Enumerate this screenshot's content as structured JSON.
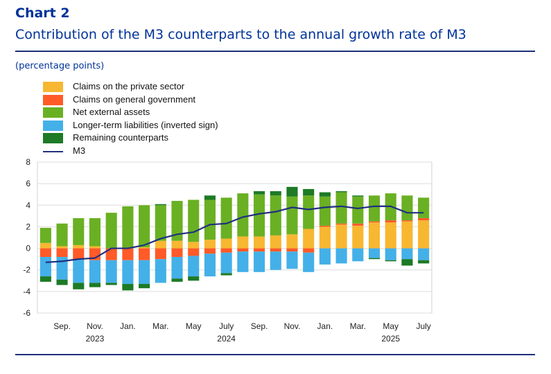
{
  "header": {
    "chart_label": "Chart 2",
    "title": "Contribution of the M3 counterparts to the annual growth rate of M3",
    "unit_note": "(percentage points)"
  },
  "chart_data": {
    "type": "bar",
    "stacked": true,
    "title": "Contribution of the M3 counterparts to the annual growth rate of M3",
    "ylabel": "(percentage points)",
    "ylim": [
      -6,
      8
    ],
    "yticks": [
      8,
      6,
      4,
      2,
      0,
      -2,
      -4,
      -6
    ],
    "grid": true,
    "legend_position": "top-left",
    "categories": [
      "2023-08",
      "2023-09",
      "2023-10",
      "2023-11",
      "2023-12",
      "2024-01",
      "2024-02",
      "2024-03",
      "2024-04",
      "2024-05",
      "2024-06",
      "2024-07",
      "2024-08",
      "2024-09",
      "2024-10",
      "2024-11",
      "2024-12",
      "2025-01",
      "2025-02",
      "2025-03",
      "2025-04",
      "2025-05",
      "2025-06",
      "2025-07"
    ],
    "x_tick_labels": [
      {
        "index": 1,
        "label": "Sep."
      },
      {
        "index": 3,
        "label": "Nov."
      },
      {
        "index": 5,
        "label": "Jan."
      },
      {
        "index": 7,
        "label": "Mar."
      },
      {
        "index": 9,
        "label": "May"
      },
      {
        "index": 11,
        "label": "July"
      },
      {
        "index": 13,
        "label": "Sep."
      },
      {
        "index": 15,
        "label": "Nov."
      },
      {
        "index": 17,
        "label": "Jan."
      },
      {
        "index": 19,
        "label": "Mar."
      },
      {
        "index": 21,
        "label": "May"
      },
      {
        "index": 23,
        "label": "July"
      }
    ],
    "year_labels": [
      {
        "index": 3,
        "label": "2023"
      },
      {
        "index": 11,
        "label": "2024"
      },
      {
        "index": 21,
        "label": "2025"
      }
    ],
    "series": [
      {
        "name": "Claims on the private sector",
        "color": "#f7b731",
        "values": [
          0.5,
          0.2,
          0.3,
          0.2,
          0.0,
          0.0,
          0.1,
          0.7,
          0.7,
          0.6,
          0.8,
          0.9,
          1.1,
          1.1,
          1.2,
          1.3,
          1.8,
          2.0,
          2.2,
          2.1,
          2.4,
          2.4,
          2.5,
          2.6
        ]
      },
      {
        "name": "Claims on general government",
        "color": "#ff5a28",
        "values": [
          -0.8,
          -0.8,
          -1.0,
          -1.1,
          -1.1,
          -1.1,
          -1.1,
          -1.0,
          -0.8,
          -0.7,
          -0.5,
          -0.4,
          -0.3,
          -0.3,
          -0.3,
          -0.3,
          -0.4,
          0.1,
          0.1,
          0.2,
          0.1,
          0.2,
          0.1,
          0.2
        ]
      },
      {
        "name": "Net external assets",
        "color": "#6ab023",
        "values": [
          1.4,
          2.1,
          2.5,
          2.6,
          3.3,
          3.9,
          3.9,
          3.3,
          3.7,
          3.9,
          3.7,
          3.8,
          4.0,
          3.9,
          3.7,
          3.5,
          3.1,
          2.7,
          2.9,
          2.5,
          2.4,
          2.5,
          2.3,
          1.9
        ]
      },
      {
        "name": "Longer-term liabilities (inverted sign)",
        "color": "#44b0e8",
        "values": [
          -1.8,
          -2.1,
          -2.2,
          -2.1,
          -2.1,
          -2.2,
          -2.2,
          -2.2,
          -2.0,
          -1.9,
          -2.1,
          -1.9,
          -1.9,
          -1.9,
          -1.7,
          -1.6,
          -1.8,
          -1.5,
          -1.4,
          -1.2,
          -0.9,
          -1.1,
          -1.0,
          -1.1
        ]
      },
      {
        "name": "Remaining counterparts",
        "color": "#1d7a25",
        "values": [
          -0.5,
          -0.5,
          -0.6,
          -0.4,
          -0.2,
          -0.6,
          -0.4,
          0.1,
          -0.3,
          -0.4,
          0.4,
          -0.2,
          0.0,
          0.3,
          0.4,
          0.9,
          0.6,
          0.4,
          0.1,
          0.1,
          -0.1,
          -0.1,
          -0.6,
          -0.3
        ]
      }
    ],
    "line_series": {
      "name": "M3",
      "color": "#1f2f80",
      "values": [
        -1.3,
        -1.2,
        -1.0,
        -0.9,
        0.0,
        0.0,
        0.3,
        0.9,
        1.3,
        1.5,
        2.2,
        2.3,
        2.9,
        3.2,
        3.4,
        3.8,
        3.6,
        3.8,
        3.9,
        3.7,
        3.9,
        3.9,
        3.3,
        3.3
      ]
    }
  }
}
